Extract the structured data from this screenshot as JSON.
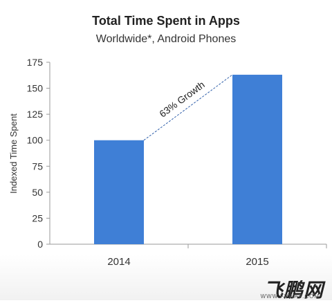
{
  "chart_data": {
    "type": "bar",
    "title": "Total Time Spent in Apps",
    "subtitle": "Worldwide*, Android Phones",
    "xlabel": "",
    "ylabel": "Indexed Time Spent",
    "categories": [
      "2014",
      "2015"
    ],
    "values": [
      100,
      163
    ],
    "ylim": [
      0,
      175
    ],
    "yticks": [
      0,
      25,
      50,
      75,
      100,
      125,
      150,
      175
    ],
    "grid": false,
    "bar_color": "#3f7fd6",
    "annotation": {
      "text": "63% Growth",
      "from_category": "2014",
      "to_category": "2015"
    }
  },
  "footer": {
    "logo_text": "飞鹏网",
    "url_text": "WWW.FPWAP.COM"
  }
}
